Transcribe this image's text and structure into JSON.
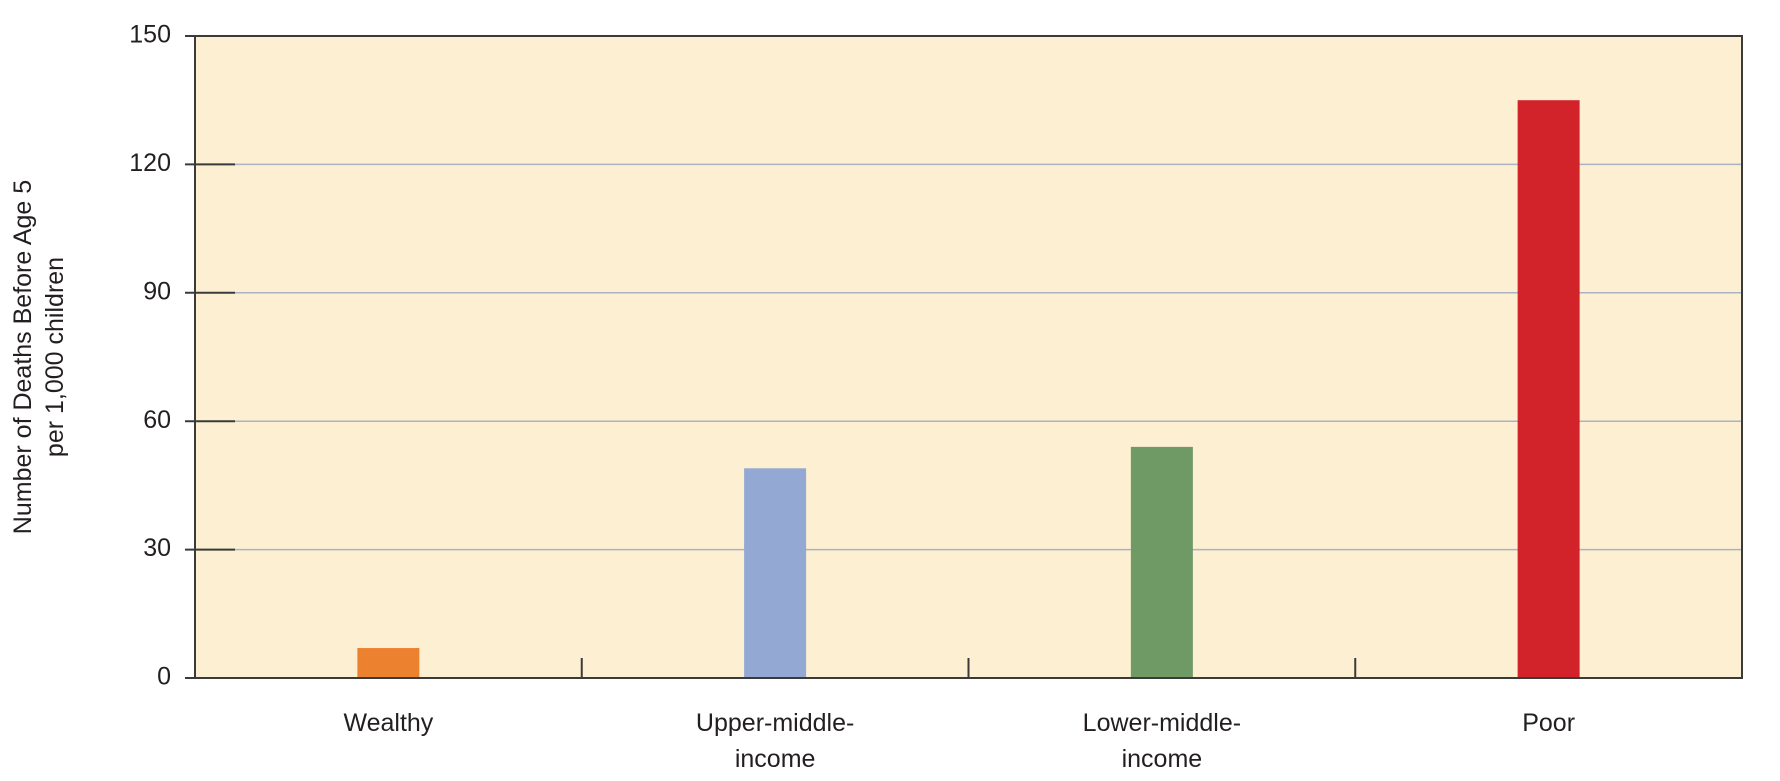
{
  "chart_data": {
    "type": "bar",
    "y_label": [
      "Number of Deaths Before Age 5",
      "per 1,000 children"
    ],
    "categories": [
      [
        "Wealthy"
      ],
      [
        "Upper-middle-",
        "income"
      ],
      [
        "Lower-middle-",
        "income"
      ],
      [
        "Poor"
      ]
    ],
    "values": [
      7,
      49,
      54,
      135
    ],
    "colors": [
      "#ec8230",
      "#93a8d2",
      "#6f9a66",
      "#d2232a"
    ],
    "ylim": [
      0,
      150
    ],
    "yticks": [
      0,
      30,
      60,
      90,
      120,
      150
    ],
    "grid": true
  }
}
